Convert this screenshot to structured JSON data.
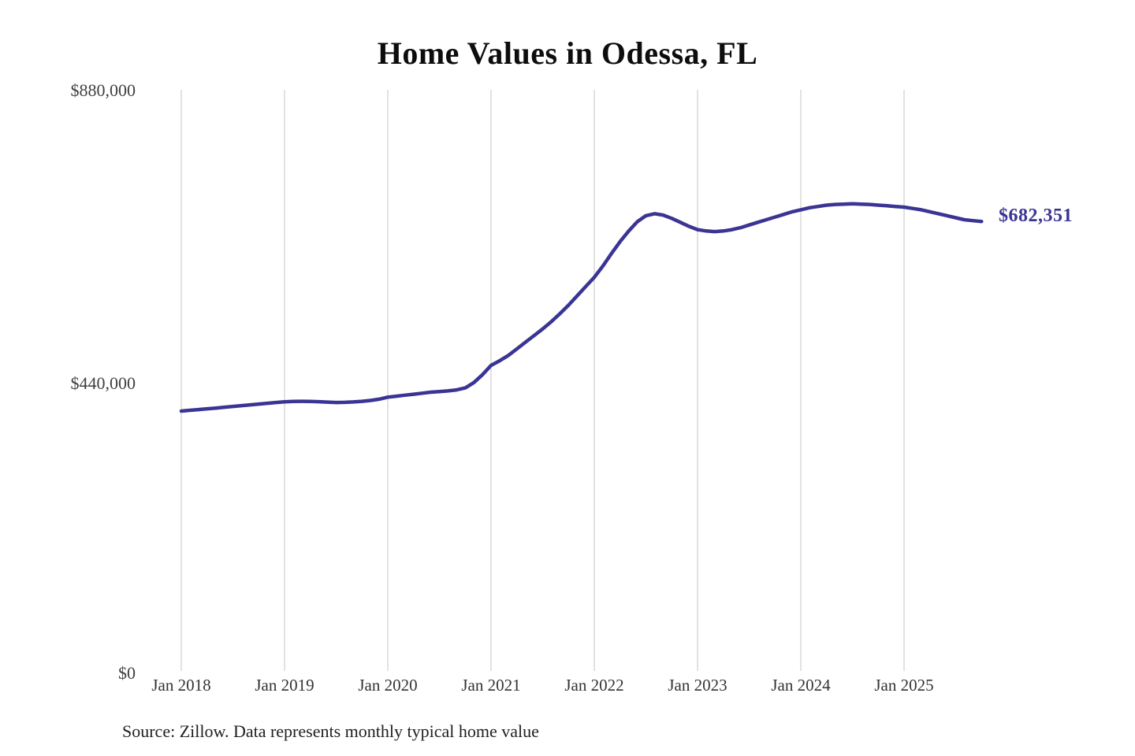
{
  "header": {
    "title": "Home Values in Odessa, FL"
  },
  "footer": {
    "source_text": "Source: Zillow. Data represents monthly typical home value"
  },
  "chart_data": {
    "type": "line",
    "title": "Home Values in Odessa, FL",
    "xlabel": "",
    "ylabel": "",
    "ylim": [
      0,
      880000
    ],
    "grid": "vertical-only",
    "legend": "none",
    "line_color": "#3a3494",
    "grid_color": "#cfcfcf",
    "end_label": "$682,351",
    "end_value": 682351,
    "yticks": [
      {
        "value": 0,
        "label": "$0"
      },
      {
        "value": 440000,
        "label": "$440,000"
      },
      {
        "value": 880000,
        "label": "$880,000"
      }
    ],
    "xticks": [
      "Jan 2018",
      "Jan 2019",
      "Jan 2020",
      "Jan 2021",
      "Jan 2022",
      "Jan 2023",
      "Jan 2024",
      "Jan 2025"
    ],
    "series": [
      {
        "name": "Monthly typical home value",
        "x_start": "2018-01",
        "x_interval": "monthly",
        "values": [
          396000,
          397200,
          398300,
          399400,
          400500,
          401800,
          403000,
          404200,
          405400,
          406600,
          407800,
          409000,
          410000,
          410500,
          410800,
          410600,
          410200,
          409600,
          409000,
          409200,
          409800,
          410800,
          412000,
          414000,
          417000,
          418500,
          420000,
          421500,
          423000,
          424500,
          425500,
          426500,
          428000,
          431000,
          439000,
          451000,
          465000,
          472000,
          480000,
          490000,
          500000,
          510000,
          520000,
          531000,
          543000,
          556000,
          570000,
          584000,
          598000,
          615000,
          634000,
          652000,
          668000,
          682000,
          691000,
          694000,
          692000,
          687000,
          681000,
          675000,
          670000,
          668000,
          667000,
          668000,
          670000,
          673000,
          677000,
          681000,
          685000,
          689000,
          693000,
          697000,
          700000,
          703000,
          705000,
          707000,
          708000,
          708500,
          709000,
          708500,
          708000,
          707000,
          706000,
          705000,
          704000,
          702000,
          700000,
          697000,
          694000,
          691000,
          688000,
          685000,
          683500,
          682351
        ]
      }
    ]
  }
}
